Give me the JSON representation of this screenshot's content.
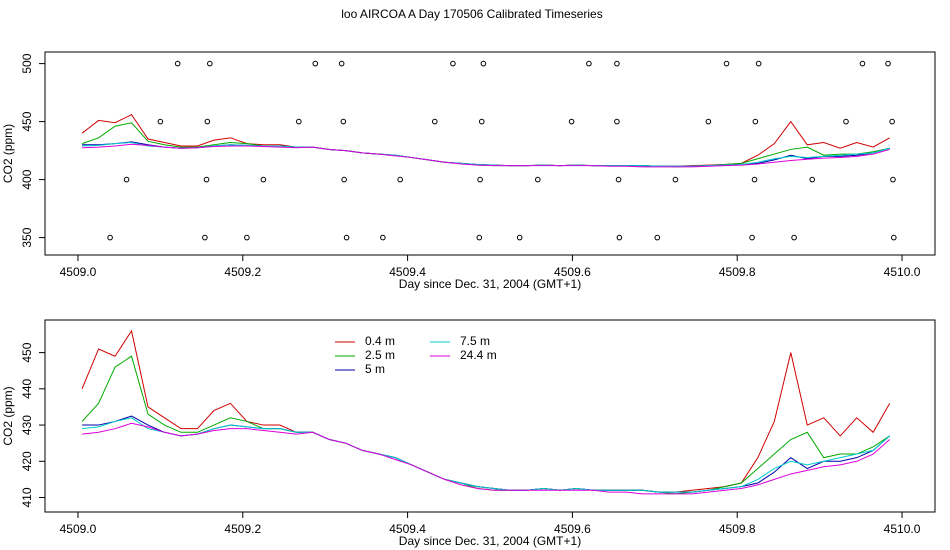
{
  "chart_data": [
    {
      "type": "line",
      "title": "loo AIRCOA A  Day 170506  Calibrated Timeseries",
      "xlabel": "Day since Dec. 31, 2004 (GMT+1)",
      "ylabel": "CO2 (ppm)",
      "xlim": [
        4508.96,
        4510.04
      ],
      "ylim": [
        335,
        510
      ],
      "xticks": [
        {
          "value": 4509,
          "label": "4509.0"
        },
        {
          "value": 4509.2,
          "label": "4509.2"
        },
        4509.4,
        4509.6,
        4509.8,
        {
          "value": 4510,
          "label": "4510.0"
        }
      ],
      "yticks": [
        350,
        400,
        450,
        500
      ],
      "markers": {
        "color": "#000000",
        "x": [
          4509.121,
          4509.16,
          4509.288,
          4509.32,
          4509.455,
          4509.492,
          4509.62,
          4509.654,
          4509.787,
          4509.826,
          4509.952,
          4509.983,
          4509.1,
          4509.157,
          4509.268,
          4509.322,
          4509.433,
          4509.49,
          4509.599,
          4509.654,
          4509.765,
          4509.822,
          4509.932,
          4509.988,
          4509.059,
          4509.156,
          4509.225,
          4509.323,
          4509.391,
          4509.488,
          4509.558,
          4509.656,
          4509.725,
          4509.821,
          4509.891,
          4509.989,
          4509.039,
          4509.154,
          4509.205,
          4509.326,
          4509.37,
          4509.487,
          4509.536,
          4509.657,
          4509.703,
          4509.818,
          4509.869,
          4509.99
        ],
        "y": [
          500,
          500,
          500,
          500,
          500,
          500,
          500,
          500,
          500,
          500,
          500,
          500,
          450,
          450,
          450,
          450,
          450,
          450,
          450,
          450,
          450,
          450,
          450,
          450,
          400,
          400,
          400,
          400,
          400,
          400,
          400,
          400,
          400,
          400,
          400,
          400,
          350,
          350,
          350,
          350,
          350,
          350,
          350,
          350,
          350,
          350,
          350,
          350
        ]
      },
      "x": [
        4509.005,
        4509.025,
        4509.045,
        4509.065,
        4509.085,
        4509.105,
        4509.125,
        4509.145,
        4509.165,
        4509.185,
        4509.205,
        4509.225,
        4509.245,
        4509.265,
        4509.285,
        4509.305,
        4509.325,
        4509.345,
        4509.365,
        4509.385,
        4509.405,
        4509.425,
        4509.445,
        4509.465,
        4509.485,
        4509.505,
        4509.525,
        4509.545,
        4509.565,
        4509.585,
        4509.605,
        4509.625,
        4509.645,
        4509.665,
        4509.685,
        4509.705,
        4509.725,
        4509.745,
        4509.765,
        4509.785,
        4509.805,
        4509.825,
        4509.845,
        4509.865,
        4509.885,
        4509.905,
        4509.925,
        4509.945,
        4509.965,
        4509.985
      ],
      "series": [
        {
          "name": "0.4 m",
          "color": "#d00000",
          "values": [
            440,
            451,
            449,
            456,
            435,
            432,
            429,
            429,
            434,
            436,
            431,
            430,
            430,
            428,
            428,
            426,
            425,
            423,
            422,
            421,
            419,
            417,
            415,
            414,
            413,
            412.5,
            412,
            412,
            412.5,
            412,
            412.5,
            412,
            412,
            412,
            412,
            411.5,
            411.5,
            412,
            412.5,
            413,
            414,
            421,
            431,
            450,
            430,
            432,
            427,
            432,
            428,
            436
          ]
        },
        {
          "name": "2.5 m",
          "color": "#00aa00",
          "values": [
            431,
            436,
            446,
            449,
            433,
            430,
            428,
            428,
            430,
            432,
            431,
            429,
            429,
            428,
            428,
            426,
            425,
            423,
            422,
            421,
            419,
            417,
            415,
            414,
            412.5,
            412,
            412,
            412,
            412.5,
            412,
            412.5,
            412,
            412,
            412,
            412,
            411.5,
            411,
            411.5,
            412,
            413,
            414,
            418,
            422,
            426,
            428,
            421,
            422,
            422,
            424,
            427
          ]
        },
        {
          "name": "5 m",
          "color": "#0000aa",
          "values": [
            430,
            430,
            431,
            432.5,
            430,
            428,
            427,
            427.5,
            429,
            430,
            429.5,
            429,
            429,
            428,
            428,
            426,
            425,
            423,
            422,
            421,
            419,
            417,
            415,
            414,
            413,
            412.5,
            412,
            412,
            412.5,
            412,
            412.5,
            412,
            412,
            412,
            412,
            411.5,
            411.5,
            411.5,
            412,
            412.5,
            413,
            414,
            417,
            421,
            418,
            420,
            420,
            421,
            423,
            427
          ]
        },
        {
          "name": "7.5 m",
          "color": "#00cccc",
          "values": [
            429,
            429.5,
            431,
            432,
            429,
            428,
            427,
            427.5,
            429,
            430,
            429.5,
            429,
            429,
            428,
            428,
            426,
            425,
            423,
            422,
            421,
            419,
            417,
            415,
            414,
            413,
            412.5,
            412,
            412,
            412.5,
            412,
            412.5,
            412,
            412,
            412,
            412,
            411.5,
            411.5,
            411.5,
            412,
            412.5,
            413,
            415,
            418,
            420,
            419,
            420,
            421,
            422,
            423,
            427
          ]
        },
        {
          "name": "24.4 m",
          "color": "#dd00dd",
          "values": [
            427.5,
            428,
            429,
            430.5,
            429.5,
            428,
            427,
            427.5,
            428.5,
            429,
            429,
            428.5,
            428,
            427.5,
            428,
            426,
            425,
            423,
            422,
            420.5,
            419,
            417,
            415,
            413.5,
            412.5,
            412,
            412,
            412,
            412,
            412,
            412,
            412,
            411.5,
            411.5,
            411,
            411,
            411,
            411,
            411.5,
            412,
            412.5,
            413.5,
            415,
            416.5,
            417.5,
            418.5,
            419,
            420,
            422,
            426
          ]
        }
      ]
    },
    {
      "type": "line",
      "xlabel": "Day since Dec. 31, 2004 (GMT+1)",
      "ylabel": "CO2 (ppm)",
      "xlim": [
        4508.96,
        4510.04
      ],
      "ylim": [
        406,
        459
      ],
      "xticks": [
        {
          "value": 4509,
          "label": "4509.0"
        },
        {
          "value": 4509.2,
          "label": "4509.2"
        },
        4509.4,
        4509.6,
        4509.8,
        {
          "value": 4510,
          "label": "4510.0"
        }
      ],
      "yticks": [
        410,
        420,
        430,
        440,
        450
      ],
      "legend": "top-center",
      "x": [
        4509.005,
        4509.025,
        4509.045,
        4509.065,
        4509.085,
        4509.105,
        4509.125,
        4509.145,
        4509.165,
        4509.185,
        4509.205,
        4509.225,
        4509.245,
        4509.265,
        4509.285,
        4509.305,
        4509.325,
        4509.345,
        4509.365,
        4509.385,
        4509.405,
        4509.425,
        4509.445,
        4509.465,
        4509.485,
        4509.505,
        4509.525,
        4509.545,
        4509.565,
        4509.585,
        4509.605,
        4509.625,
        4509.645,
        4509.665,
        4509.685,
        4509.705,
        4509.725,
        4509.745,
        4509.765,
        4509.785,
        4509.805,
        4509.825,
        4509.845,
        4509.865,
        4509.885,
        4509.905,
        4509.925,
        4509.945,
        4509.965,
        4509.985
      ],
      "series": [
        {
          "name": "0.4 m",
          "color": "#d00000",
          "values": [
            440,
            451,
            449,
            456,
            435,
            432,
            429,
            429,
            434,
            436,
            431,
            430,
            430,
            428,
            428,
            426,
            425,
            423,
            422,
            421,
            419,
            417,
            415,
            414,
            413,
            412.5,
            412,
            412,
            412.5,
            412,
            412.5,
            412,
            412,
            412,
            412,
            411.5,
            411.5,
            412,
            412.5,
            413,
            414,
            421,
            431,
            450,
            430,
            432,
            427,
            432,
            428,
            436
          ]
        },
        {
          "name": "2.5 m",
          "color": "#00aa00",
          "values": [
            431,
            436,
            446,
            449,
            433,
            430,
            428,
            428,
            430,
            432,
            431,
            429,
            429,
            428,
            428,
            426,
            425,
            423,
            422,
            421,
            419,
            417,
            415,
            414,
            412.5,
            412,
            412,
            412,
            412.5,
            412,
            412.5,
            412,
            412,
            412,
            412,
            411.5,
            411,
            411.5,
            412,
            413,
            414,
            418,
            422,
            426,
            428,
            421,
            422,
            422,
            424,
            427
          ]
        },
        {
          "name": "5 m",
          "color": "#0000aa",
          "values": [
            430,
            430,
            431,
            432.5,
            430,
            428,
            427,
            427.5,
            429,
            430,
            429.5,
            429,
            429,
            428,
            428,
            426,
            425,
            423,
            422,
            421,
            419,
            417,
            415,
            414,
            413,
            412.5,
            412,
            412,
            412.5,
            412,
            412.5,
            412,
            412,
            412,
            412,
            411.5,
            411.5,
            411.5,
            412,
            412.5,
            413,
            414,
            417,
            421,
            418,
            420,
            420,
            421,
            423,
            427
          ]
        },
        {
          "name": "7.5 m",
          "color": "#00cccc",
          "values": [
            429,
            429.5,
            431,
            432,
            429,
            428,
            427,
            427.5,
            429,
            430,
            429.5,
            429,
            429,
            428,
            428,
            426,
            425,
            423,
            422,
            421,
            419,
            417,
            415,
            414,
            413,
            412.5,
            412,
            412,
            412.5,
            412,
            412.5,
            412,
            412,
            412,
            412,
            411.5,
            411.5,
            411.5,
            412,
            412.5,
            413,
            415,
            418,
            420,
            419,
            420,
            421,
            422,
            423,
            427
          ]
        },
        {
          "name": "24.4 m",
          "color": "#dd00dd",
          "values": [
            427.5,
            428,
            429,
            430.5,
            429.5,
            428,
            427,
            427.5,
            428.5,
            429,
            429,
            428.5,
            428,
            427.5,
            428,
            426,
            425,
            423,
            422,
            420.5,
            419,
            417,
            415,
            413.5,
            412.5,
            412,
            412,
            412,
            412,
            412,
            412,
            412,
            411.5,
            411.5,
            411,
            411,
            411,
            411,
            411.5,
            412,
            412.5,
            413.5,
            415,
            416.5,
            417.5,
            418.5,
            419,
            420,
            422,
            426
          ]
        }
      ]
    }
  ]
}
